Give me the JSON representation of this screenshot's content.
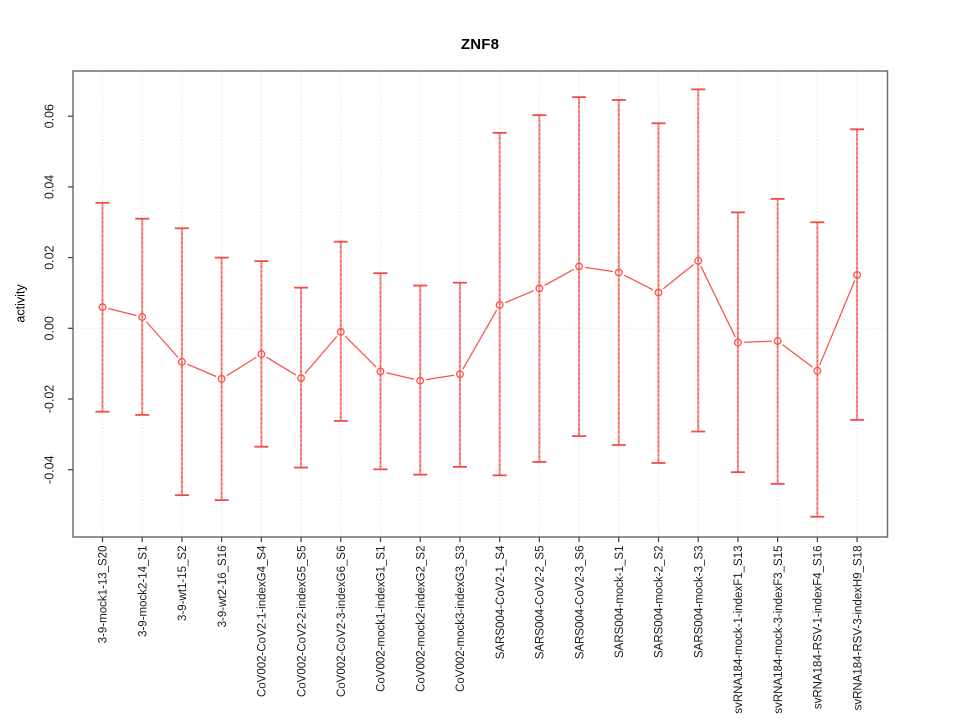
{
  "figure": {
    "title": "ZNF8",
    "y_axis_label": "activity"
  },
  "chart_data": {
    "type": "line",
    "subtype": "points-with-error-bars",
    "title": "ZNF8",
    "xlabel": "",
    "ylabel": "activity",
    "categories": [
      "3-9-mock1-13_S20",
      "3-9-mock2-14_S1",
      "3-9-wt1-15_S2",
      "3-9-wt2-16_S16",
      "CoV002-CoV2-1-indexG4_S4",
      "CoV002-CoV2-2-indexG5_S5",
      "CoV002-CoV2-3-indexG6_S6",
      "CoV002-mock1-indexG1_S1",
      "CoV002-mock2-indexG2_S2",
      "CoV002-mock3-indexG3_S3",
      "SARS004-CoV2-1_S4",
      "SARS004-CoV2-2_S5",
      "SARS004-CoV2-3_S6",
      "SARS004-mock-1_S1",
      "SARS004-mock-2_S2",
      "SARS004-mock-3_S3",
      "svRNA184-mock-1-indexF1_S13",
      "svRNA184-mock-3-indexF3_S15",
      "svRNA184-RSV-1-indexF4_S16",
      "svRNA184-RSV-3-indexH9_S18"
    ],
    "series": [
      {
        "name": "activity",
        "values": [
          0.006,
          0.0032,
          -0.0095,
          -0.0143,
          -0.0073,
          -0.0141,
          -0.001,
          -0.0122,
          -0.0148,
          -0.013,
          0.0066,
          0.0113,
          0.0175,
          0.0158,
          0.0101,
          0.0191,
          -0.004,
          -0.0036,
          -0.012,
          0.0151
        ],
        "error_upper": [
          0.0355,
          0.031,
          0.0283,
          0.02,
          0.019,
          0.0115,
          0.0245,
          0.0156,
          0.0121,
          0.0129,
          0.0553,
          0.0603,
          0.0654,
          0.0646,
          0.058,
          0.0676,
          0.0328,
          0.0366,
          0.03,
          0.0563
        ],
        "error_lower": [
          -0.0236,
          -0.0245,
          -0.0472,
          -0.0486,
          -0.0335,
          -0.0394,
          -0.0262,
          -0.0399,
          -0.0414,
          -0.0392,
          -0.0416,
          -0.0378,
          -0.0305,
          -0.033,
          -0.0381,
          -0.0292,
          -0.0407,
          -0.044,
          -0.0533,
          -0.0259
        ]
      }
    ],
    "yticks": [
      0.06,
      0.04,
      0.02,
      0.0,
      -0.02,
      -0.04
    ],
    "ylim": [
      -0.059,
      0.073
    ],
    "grid": {
      "vertical": "dotted line at every category",
      "horizontal": "dotted line at zero only"
    },
    "legend": "none",
    "colors": {
      "series": "#f8534d",
      "error_bar": "#f9928c",
      "error_bar_accent": "#ee4e48",
      "grid": "#dcdcdc",
      "axis_box": "#6e6e6e",
      "tick": "#4a4a4a",
      "text": "#1a1a1a"
    }
  }
}
